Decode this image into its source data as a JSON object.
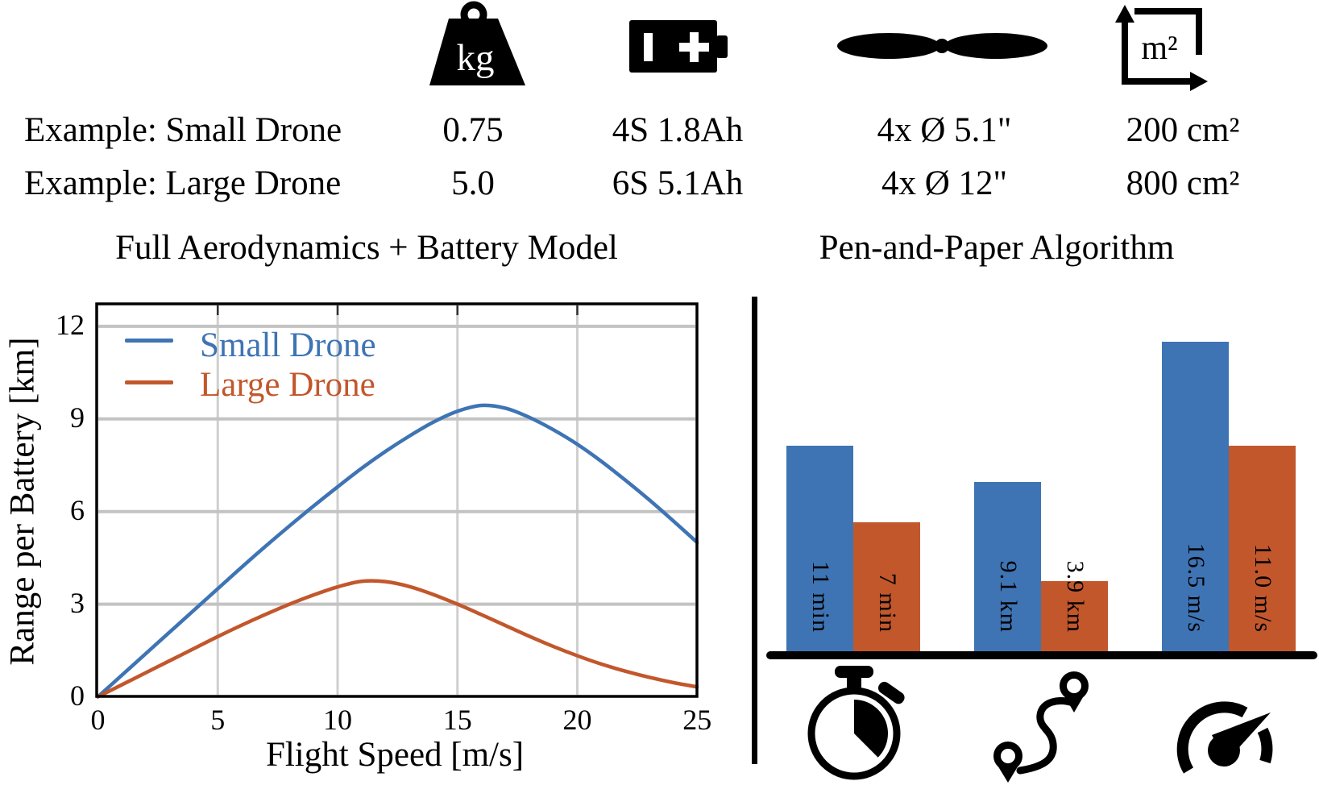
{
  "figure": {
    "header": {
      "rows": [
        {
          "label": "Example: Small Drone",
          "mass": "0.75",
          "battery": "4S 1.8Ah",
          "propellers": "4x Ø 5.1\"",
          "area": "200 cm²"
        },
        {
          "label": "Example: Large Drone",
          "mass": "5.0",
          "battery": "6S 5.1Ah",
          "propellers": "4x Ø 12\"",
          "area": "800 cm²"
        }
      ],
      "column_icons": [
        {
          "name": "kg-weight-icon",
          "text": "kg",
          "meaning": "mass"
        },
        {
          "name": "battery-icon",
          "meaning": "battery"
        },
        {
          "name": "propeller-icon",
          "meaning": "propellers"
        },
        {
          "name": "area-icon",
          "text": "m²",
          "meaning": "frame area"
        }
      ]
    }
  },
  "chart_data": [
    {
      "type": "line",
      "title": "Full Aerodynamics + Battery Model",
      "xlabel": "Flight Speed [m/s]",
      "ylabel": "Range per Battery [km]",
      "xlim": [
        0,
        25
      ],
      "ylim": [
        0,
        12.7
      ],
      "x_ticks": [
        0,
        5,
        10,
        15,
        20,
        25
      ],
      "y_ticks": [
        0,
        3,
        6,
        9,
        12
      ],
      "grid": true,
      "legend_position": "upper left",
      "series": [
        {
          "name": "Small Drone",
          "color": "#3E74B4",
          "x": [
            0,
            1,
            2,
            3,
            4,
            5,
            6,
            7,
            8,
            9,
            10,
            11,
            12,
            13,
            14,
            15,
            16,
            17,
            18,
            19,
            20,
            21,
            22,
            23,
            24,
            25
          ],
          "y": [
            0,
            0.7,
            1.4,
            2.1,
            2.8,
            3.5,
            4.2,
            4.88,
            5.54,
            6.18,
            6.8,
            7.4,
            7.95,
            8.45,
            8.9,
            9.25,
            9.44,
            9.35,
            9.05,
            8.65,
            8.18,
            7.63,
            7.02,
            6.38,
            5.7,
            5.0
          ]
        },
        {
          "name": "Large Drone",
          "color": "#C2572C",
          "x": [
            0,
            1,
            2,
            3,
            4,
            5,
            6,
            7,
            8,
            9,
            10,
            11,
            12,
            13,
            14,
            15,
            16,
            17,
            18,
            19,
            20,
            21,
            22,
            23,
            24,
            25
          ],
          "y": [
            0,
            0.39,
            0.78,
            1.17,
            1.56,
            1.95,
            2.32,
            2.67,
            3.0,
            3.3,
            3.56,
            3.74,
            3.73,
            3.57,
            3.31,
            3.0,
            2.66,
            2.31,
            1.96,
            1.63,
            1.33,
            1.06,
            0.83,
            0.63,
            0.46,
            0.32
          ]
        }
      ]
    },
    {
      "type": "bar",
      "title": "Pen-and-Paper Algorithm",
      "categories": [
        "flight time",
        "flight distance",
        "flight speed"
      ],
      "category_icons": [
        "stopwatch-icon",
        "route-icon",
        "speedometer-icon"
      ],
      "series": [
        {
          "name": "Small Drone",
          "color": "#3E74B4",
          "values": [
            11,
            9.1,
            16.5
          ],
          "labels": [
            "11 min",
            "9.1 km",
            "16.5 m/s"
          ]
        },
        {
          "name": "Large Drone",
          "color": "#C2572C",
          "values": [
            7,
            3.9,
            11.0
          ],
          "labels": [
            "7 min",
            "3.9 km",
            "11.0 m/s"
          ]
        }
      ],
      "bar_label_rotation_deg": 90
    }
  ],
  "colors": {
    "small_drone_blue": "#3E74B4",
    "large_drone_orange": "#C2572C",
    "grid_major": "#C3C3C3",
    "grid_minor": "#CFCFCF",
    "axis": "#000000"
  }
}
